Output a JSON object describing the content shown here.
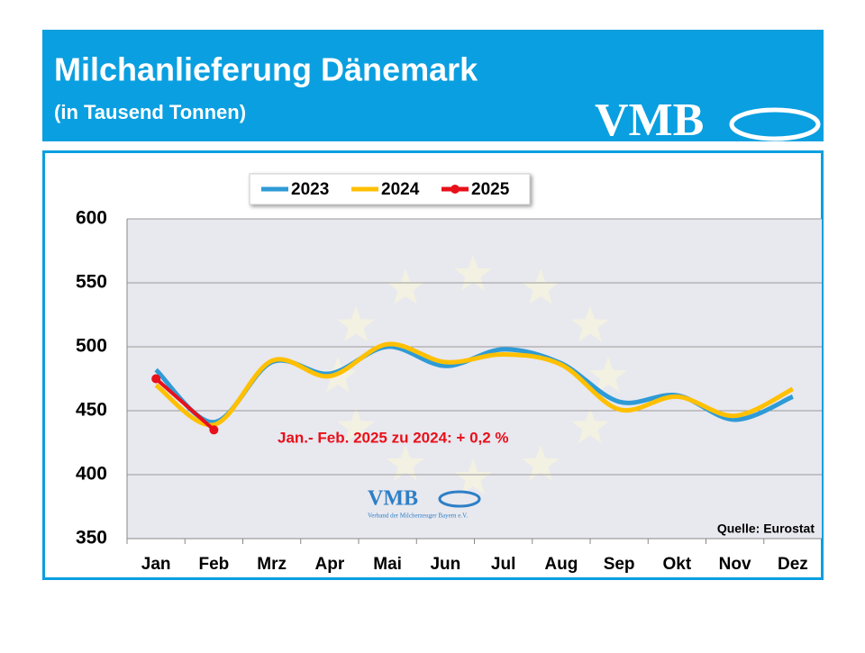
{
  "chart_data": {
    "type": "line",
    "title": "Milchanlieferung Dänemark",
    "subtitle": "(in Tausend Tonnen)",
    "logo": "VMB",
    "watermark": {
      "logo": "VMB",
      "text": "Verband der Milcherzeuger Bayern e.V."
    },
    "annotation": "Jan.- Feb. 2025 zu 2024: + 0,2 %",
    "source": "Quelle: Eurostat",
    "categories": [
      "Jan",
      "Feb",
      "Mrz",
      "Apr",
      "Mai",
      "Jun",
      "Jul",
      "Aug",
      "Sep",
      "Okt",
      "Nov",
      "Dez"
    ],
    "series": [
      {
        "name": "2023",
        "color": "#2e9bd6",
        "values": [
          482,
          441,
          488,
          479,
          500,
          485,
          498,
          487,
          457,
          462,
          443,
          461
        ]
      },
      {
        "name": "2024",
        "color": "#ffc000",
        "values": [
          470,
          439,
          489,
          477,
          502,
          488,
          494,
          486,
          451,
          461,
          446,
          467
        ]
      },
      {
        "name": "2025",
        "color": "#e8101a",
        "values": [
          475,
          435,
          null,
          null,
          null,
          null,
          null,
          null,
          null,
          null,
          null,
          null
        ],
        "markers": true
      }
    ],
    "ylim": [
      350,
      600
    ],
    "yticks": [
      350,
      400,
      450,
      500,
      550,
      600
    ],
    "grid": true
  }
}
